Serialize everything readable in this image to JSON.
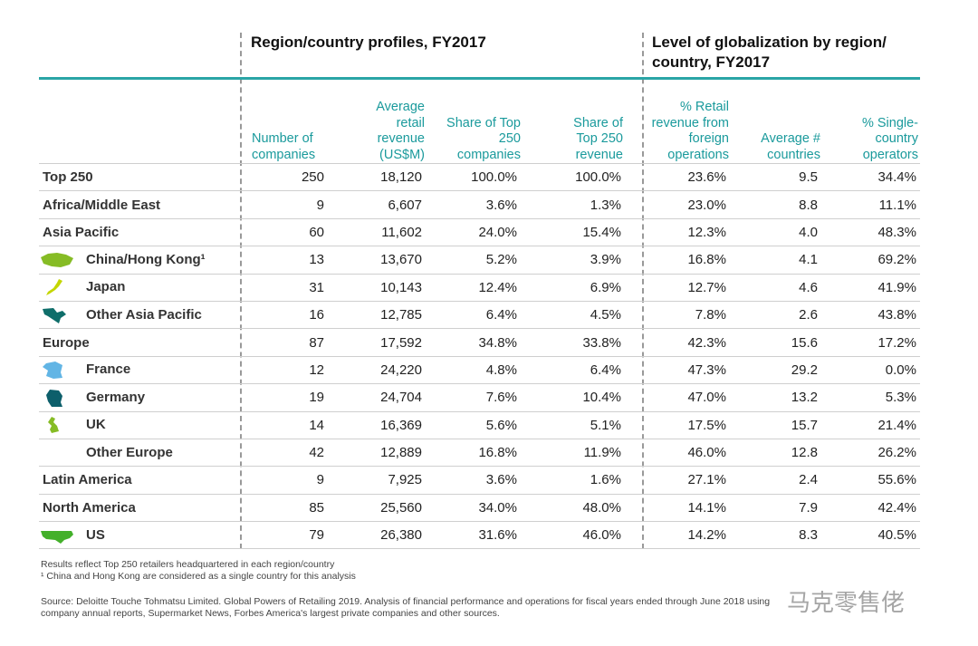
{
  "sections": {
    "left": "Region/country profiles, FY2017",
    "right_line1": "Level of globalization by region/",
    "right_line2": "country, FY2017"
  },
  "headers": [
    "Number of companies",
    "Average retail revenue (US$M)",
    "Share of Top 250 companies",
    "Share of Top 250 revenue",
    "% Retail revenue from foreign operations",
    "Average # countries",
    "% Single-country operators"
  ],
  "rows": [
    {
      "label": "Top 250",
      "icon": "",
      "cells": [
        "250",
        "18,120",
        "100.0%",
        "100.0%",
        "23.6%",
        "9.5",
        "34.4%"
      ]
    },
    {
      "label": "Africa/Middle East",
      "icon": "",
      "cells": [
        "9",
        "6,607",
        "3.6%",
        "1.3%",
        "23.0%",
        "8.8",
        "11.1%"
      ]
    },
    {
      "label": "Asia Pacific",
      "icon": "",
      "cells": [
        "60",
        "11,602",
        "24.0%",
        "15.4%",
        "12.3%",
        "4.0",
        "48.3%"
      ]
    },
    {
      "label": "China/Hong Kong¹",
      "icon": "china-map-icon",
      "color": "#86bc25",
      "cells": [
        "13",
        "13,670",
        "5.2%",
        "3.9%",
        "16.8%",
        "4.1",
        "69.2%"
      ]
    },
    {
      "label": "Japan",
      "icon": "japan-map-icon",
      "color": "#c4d600",
      "cells": [
        "31",
        "10,143",
        "12.4%",
        "6.9%",
        "12.7%",
        "4.6",
        "41.9%"
      ]
    },
    {
      "label": "Other Asia Pacific",
      "icon": "other-asia-map-icon",
      "color": "#0f6e6a",
      "cells": [
        "16",
        "12,785",
        "6.4%",
        "4.5%",
        "7.8%",
        "2.6",
        "43.8%"
      ]
    },
    {
      "label": "Europe",
      "icon": "",
      "cells": [
        "87",
        "17,592",
        "34.8%",
        "33.8%",
        "42.3%",
        "15.6",
        "17.2%"
      ]
    },
    {
      "label": "France",
      "icon": "france-map-icon",
      "color": "#62b5e5",
      "cells": [
        "12",
        "24,220",
        "4.8%",
        "6.4%",
        "47.3%",
        "29.2",
        "0.0%"
      ]
    },
    {
      "label": "Germany",
      "icon": "germany-map-icon",
      "color": "#0d5f6b",
      "cells": [
        "19",
        "24,704",
        "7.6%",
        "10.4%",
        "47.0%",
        "13.2",
        "5.3%"
      ]
    },
    {
      "label": "UK",
      "icon": "uk-map-icon",
      "color": "#86bc25",
      "cells": [
        "14",
        "16,369",
        "5.6%",
        "5.1%",
        "17.5%",
        "15.7",
        "21.4%"
      ]
    },
    {
      "label": "Other Europe",
      "icon": "none",
      "cells": [
        "42",
        "12,889",
        "16.8%",
        "11.9%",
        "46.0%",
        "12.8",
        "26.2%"
      ]
    },
    {
      "label": "Latin America",
      "icon": "",
      "cells": [
        "9",
        "7,925",
        "3.6%",
        "1.6%",
        "27.1%",
        "2.4",
        "55.6%"
      ]
    },
    {
      "label": "North America",
      "icon": "",
      "cells": [
        "85",
        "25,560",
        "34.0%",
        "48.0%",
        "14.1%",
        "7.9",
        "42.4%"
      ]
    },
    {
      "label": "US",
      "icon": "us-map-icon",
      "color": "#43b02a",
      "cells": [
        "79",
        "26,380",
        "31.6%",
        "46.0%",
        "14.2%",
        "8.3",
        "40.5%"
      ]
    }
  ],
  "notes": {
    "n1": "Results reflect Top 250 retailers headquartered in each region/country",
    "n2": "¹ China and Hong Kong are considered as a single country for this analysis",
    "source1": "Source: Deloitte Touche Tohmatsu Limited. Global Powers of Retailing 2019. Analysis of financial performance and operations for fiscal years ended through June 2018 using",
    "source2": "company annual reports, Supermarket News, Forbes America's largest private companies and other sources."
  },
  "watermark": "马克零售佬"
}
